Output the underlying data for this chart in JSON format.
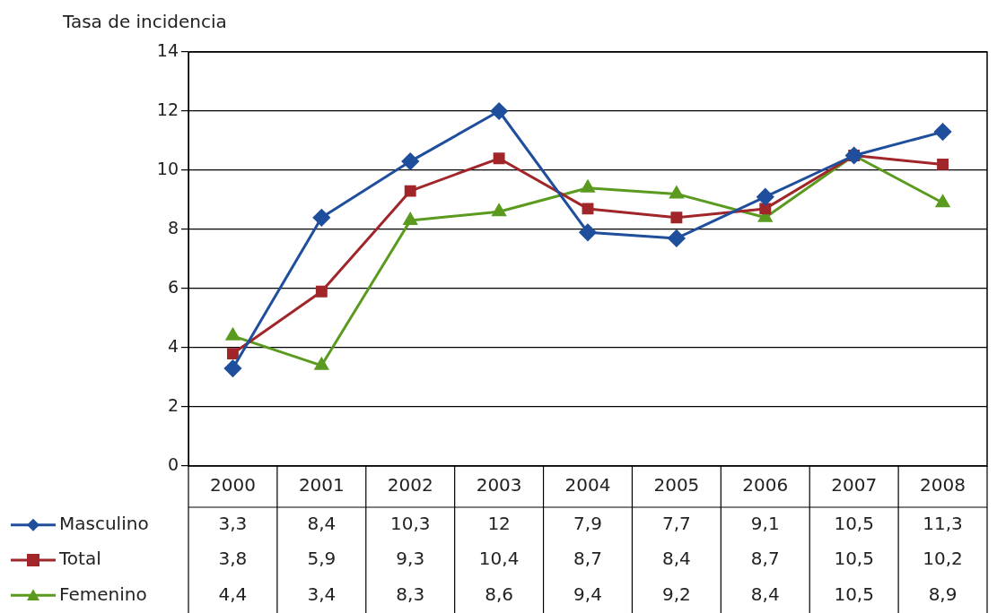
{
  "chart_data": {
    "type": "line",
    "ylabel": "Tasa de incidencia",
    "categories": [
      "2000",
      "2001",
      "2002",
      "2003",
      "2004",
      "2005",
      "2006",
      "2007",
      "2008"
    ],
    "series": [
      {
        "name": "Masculino",
        "color": "#1f4e9c",
        "marker": "diamond",
        "values": [
          3.3,
          8.4,
          10.3,
          12,
          7.9,
          7.7,
          9.1,
          10.5,
          11.3
        ],
        "value_labels": [
          "3,3",
          "8,4",
          "10,3",
          "12",
          "7,9",
          "7,7",
          "9,1",
          "10,5",
          "11,3"
        ]
      },
      {
        "name": "Total",
        "color": "#a0262a",
        "marker": "square",
        "values": [
          3.8,
          5.9,
          9.3,
          10.4,
          8.7,
          8.4,
          8.7,
          10.5,
          10.2
        ],
        "value_labels": [
          "3,8",
          "5,9",
          "9,3",
          "10,4",
          "8,7",
          "8,4",
          "8,7",
          "10,5",
          "10,2"
        ]
      },
      {
        "name": "Femenino",
        "color": "#5a9a1e",
        "marker": "triangle",
        "values": [
          4.4,
          3.4,
          8.3,
          8.6,
          9.4,
          9.2,
          8.4,
          10.5,
          8.9
        ],
        "value_labels": [
          "4,4",
          "3,4",
          "8,3",
          "8,6",
          "9,4",
          "9,2",
          "8,4",
          "10,5",
          "8,9"
        ]
      }
    ],
    "ylim": [
      0,
      14
    ],
    "yticks": [
      0,
      2,
      4,
      6,
      8,
      10,
      12,
      14
    ],
    "grid": "y",
    "legend": "bottom left"
  }
}
